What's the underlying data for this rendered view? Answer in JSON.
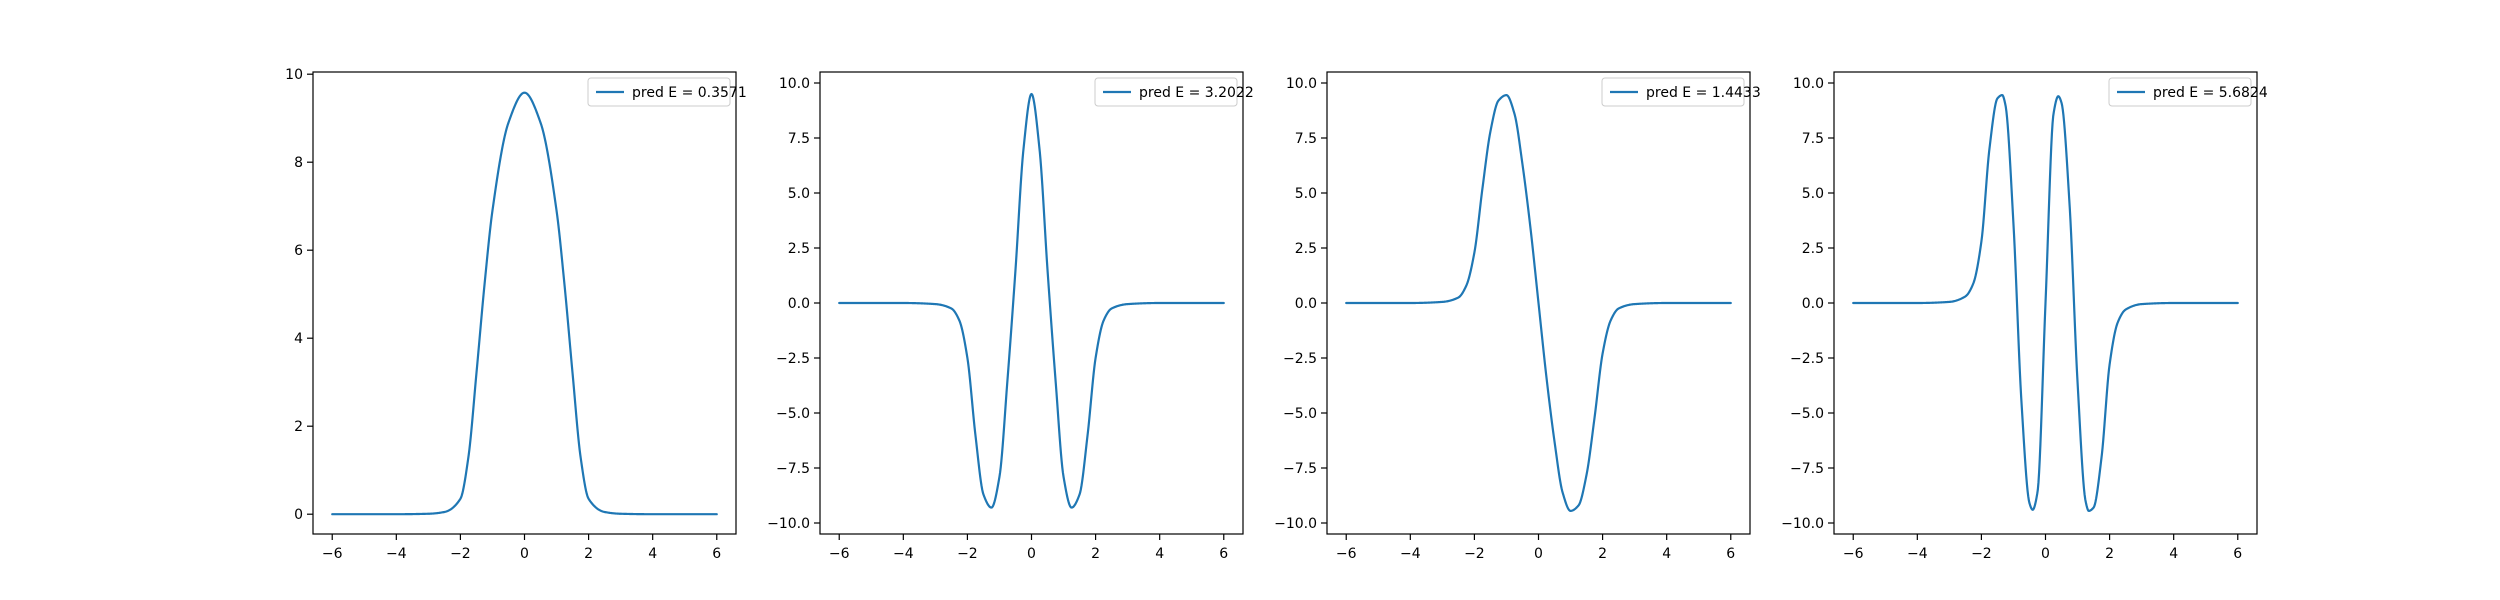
{
  "figure": {
    "background": "#ffffff",
    "line_color": "#1f77b4"
  },
  "chart_data": [
    {
      "type": "line",
      "x": [
        -6,
        -5,
        -4,
        -3,
        -2.5,
        -2,
        -1.75,
        -1.5,
        -1.25,
        -1,
        -0.5,
        0,
        0.5,
        1,
        1.25,
        1.5,
        1.75,
        2,
        2.5,
        3,
        4,
        5,
        6
      ],
      "series": [
        {
          "name": "pred E = 0.3571",
          "values": [
            0,
            0,
            0,
            0.01,
            0.05,
            0.35,
            1.3,
            3.2,
            5.2,
            6.9,
            8.9,
            9.58,
            8.9,
            6.9,
            5.2,
            3.2,
            1.3,
            0.35,
            0.05,
            0.01,
            0,
            0,
            0
          ]
        }
      ],
      "xlim": [
        -6.6,
        6.6
      ],
      "ylim": [
        -0.45,
        10.05
      ],
      "xticks": [
        -6,
        -4,
        -2,
        0,
        2,
        4,
        6
      ],
      "yticks": [
        0,
        2,
        4,
        6,
        8,
        10
      ],
      "xticklabels": [
        "−6",
        "−4",
        "−2",
        "0",
        "2",
        "4",
        "6"
      ],
      "yticklabels": [
        "0",
        "2",
        "4",
        "6",
        "8",
        "10"
      ],
      "legend_position": "top-right",
      "grid": false
    },
    {
      "type": "line",
      "x": [
        -6,
        -5,
        -4,
        -3,
        -2.5,
        -2.25,
        -2,
        -1.75,
        -1.5,
        -1.25,
        -1,
        -0.75,
        -0.5,
        -0.25,
        0,
        0.25,
        0.5,
        0.75,
        1,
        1.25,
        1.5,
        1.75,
        2,
        2.25,
        2.5,
        3,
        4,
        5,
        6
      ],
      "series": [
        {
          "name": "pred E = 3.2022",
          "values": [
            0,
            0,
            0,
            -0.05,
            -0.25,
            -0.8,
            -2.5,
            -6.0,
            -8.7,
            -9.3,
            -7.9,
            -3.5,
            1.5,
            7.0,
            9.5,
            7.0,
            1.5,
            -3.5,
            -7.9,
            -9.3,
            -8.7,
            -6.0,
            -2.5,
            -0.8,
            -0.25,
            -0.05,
            0,
            0,
            0
          ]
        }
      ],
      "xlim": [
        -6.6,
        6.6
      ],
      "ylim": [
        -10.5,
        10.5
      ],
      "xticks": [
        -6,
        -4,
        -2,
        0,
        2,
        4,
        6
      ],
      "yticks": [
        -10,
        -7.5,
        -5,
        -2.5,
        0,
        2.5,
        5,
        7.5,
        10
      ],
      "xticklabels": [
        "−6",
        "−4",
        "−2",
        "0",
        "2",
        "4",
        "6"
      ],
      "yticklabels": [
        "−10.0",
        "−7.5",
        "−5.0",
        "−2.5",
        "0.0",
        "2.5",
        "5.0",
        "7.5",
        "10.0"
      ],
      "legend_position": "top-right",
      "grid": false
    },
    {
      "type": "line",
      "x": [
        -6,
        -5,
        -4,
        -3,
        -2.5,
        -2.25,
        -2,
        -1.75,
        -1.5,
        -1.25,
        -1,
        -0.75,
        -0.5,
        -0.25,
        0,
        0.25,
        0.5,
        0.75,
        1,
        1.25,
        1.5,
        1.75,
        2,
        2.25,
        2.5,
        3,
        4,
        5,
        6
      ],
      "series": [
        {
          "name": "pred E = 1.4433",
          "values": [
            0,
            0,
            0,
            0.05,
            0.25,
            0.8,
            2.3,
            5.2,
            7.8,
            9.2,
            9.45,
            8.6,
            6.3,
            3.4,
            0,
            -3.4,
            -6.3,
            -8.6,
            -9.45,
            -9.2,
            -7.8,
            -5.2,
            -2.3,
            -0.8,
            -0.25,
            -0.05,
            0,
            0,
            0
          ]
        }
      ],
      "xlim": [
        -6.6,
        6.6
      ],
      "ylim": [
        -10.5,
        10.5
      ],
      "xticks": [
        -6,
        -4,
        -2,
        0,
        2,
        4,
        6
      ],
      "yticks": [
        -10,
        -7.5,
        -5,
        -2.5,
        0,
        2.5,
        5,
        7.5,
        10
      ],
      "xticklabels": [
        "−6",
        "−4",
        "−2",
        "0",
        "2",
        "4",
        "6"
      ],
      "yticklabels": [
        "−10.0",
        "−7.5",
        "−5.0",
        "−2.5",
        "0.0",
        "2.5",
        "5.0",
        "7.5",
        "10.0"
      ],
      "legend_position": "top-right",
      "grid": false
    },
    {
      "type": "line",
      "x": [
        -6,
        -5,
        -4,
        -3,
        -2.5,
        -2.25,
        -2,
        -1.75,
        -1.5,
        -1.35,
        -1.25,
        -1,
        -0.75,
        -0.5,
        -0.4,
        -0.25,
        0,
        0.25,
        0.4,
        0.5,
        0.75,
        1,
        1.25,
        1.35,
        1.5,
        1.75,
        2,
        2.25,
        2.5,
        3,
        4,
        5,
        6
      ],
      "series": [
        {
          "name": "pred E = 5.6824",
          "values": [
            0,
            0,
            0,
            0.05,
            0.3,
            0.9,
            2.8,
            7.0,
            9.3,
            9.45,
            9.0,
            3.6,
            -4.5,
            -9.1,
            -9.4,
            -8.6,
            0,
            8.6,
            9.4,
            9.1,
            4.5,
            -3.6,
            -9.0,
            -9.45,
            -9.3,
            -7.0,
            -2.8,
            -0.9,
            -0.3,
            -0.05,
            0,
            0,
            0
          ]
        }
      ],
      "xlim": [
        -6.6,
        6.6
      ],
      "ylim": [
        -10.5,
        10.5
      ],
      "xticks": [
        -6,
        -4,
        -2,
        0,
        2,
        4,
        6
      ],
      "yticks": [
        -10,
        -7.5,
        -5,
        -2.5,
        0,
        2.5,
        5,
        7.5,
        10
      ],
      "xticklabels": [
        "−6",
        "−4",
        "−2",
        "0",
        "2",
        "4",
        "6"
      ],
      "yticklabels": [
        "−10.0",
        "−7.5",
        "−5.0",
        "−2.5",
        "0.0",
        "2.5",
        "5.0",
        "7.5",
        "10.0"
      ],
      "legend_position": "top-right",
      "grid": false
    }
  ]
}
